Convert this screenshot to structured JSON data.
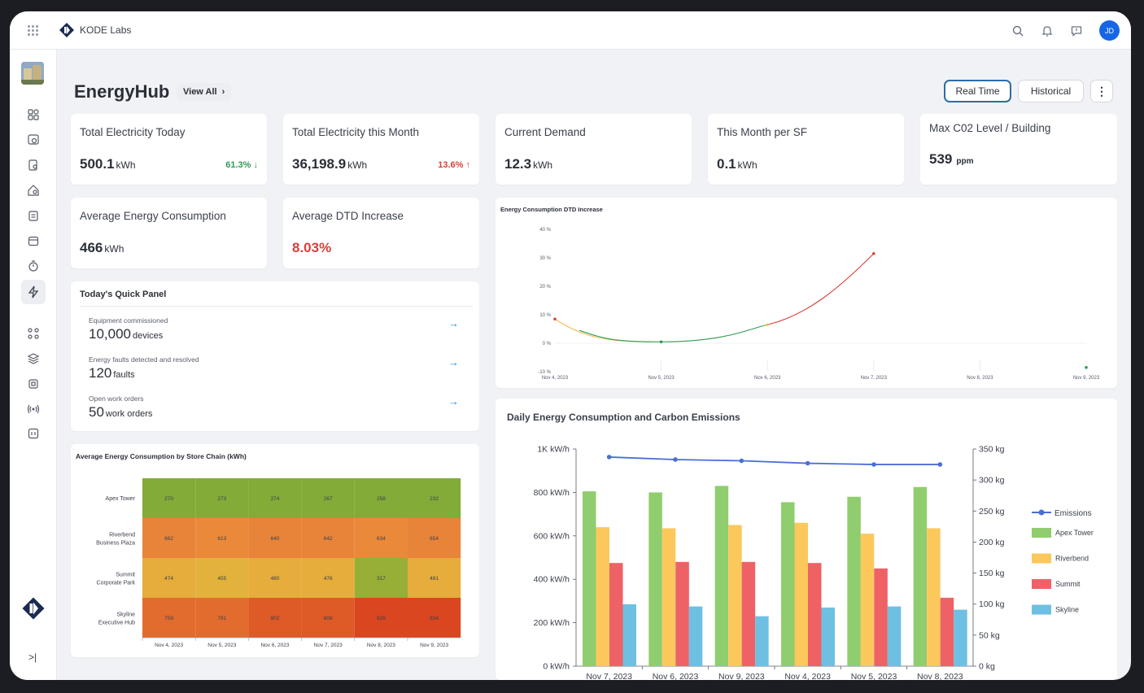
{
  "topbar": {
    "brand": "KODE Labs",
    "avatar_initials": "JD",
    "icons": [
      "apps-grid-icon",
      "search-icon",
      "bell-icon",
      "message-icon"
    ]
  },
  "header": {
    "title": "EnergyHub",
    "view_all": "View All",
    "real_time": "Real Time",
    "historical": "Historical"
  },
  "kpis": [
    {
      "label": "Total Electricity Today",
      "value": "500.1",
      "unit": "kWh",
      "change": "61.3% ↓",
      "change_color": "#2e9b55"
    },
    {
      "label": "Total Electricity this Month",
      "value": "36,198.9",
      "unit": "kWh",
      "change": "13.6% ↑",
      "change_color": "#d8403a"
    },
    {
      "label": "Current Demand",
      "value": "12.3",
      "unit": "kWh"
    },
    {
      "label": "This Month per SF",
      "value": "0.1",
      "unit": "kWh"
    },
    {
      "label": "Max C02 Level / Building",
      "value": "539",
      "unit": "ppm"
    },
    {
      "label": "Average Energy Consumption",
      "value": "466",
      "unit": "kWh"
    },
    {
      "label": "Average DTD Increase",
      "value": "8.03%",
      "value_color": "#d8403a"
    }
  ],
  "quick_panel": {
    "title": "Today's Quick Panel",
    "items": [
      {
        "caption": "Equipment commissioned",
        "value": "10,000",
        "unit": "devices"
      },
      {
        "caption": "Energy faults detected and resolved",
        "value": "120",
        "unit": "faults"
      },
      {
        "caption": "Open work orders",
        "value": "50",
        "unit": "work orders"
      }
    ]
  },
  "charts": {
    "dtd": {
      "type": "line",
      "title": "Energy Consumption DTD Increase",
      "x": [
        "Nov 4, 2023",
        "Nov 5, 2023",
        "Nov 6, 2023",
        "Nov 7, 2023",
        "Nov 8, 2023",
        "Nov 9, 2023"
      ],
      "y_ticks": [
        "40 %",
        "30 %",
        "20 %",
        "10 %",
        "0 %",
        "-10 %"
      ],
      "ylim": [
        -10,
        40
      ],
      "points": [
        {
          "x": 0,
          "y": 8.5,
          "color": "#d8403a"
        },
        {
          "x": 1,
          "y": 0.5,
          "color": "#2e9b55"
        },
        {
          "x": 2,
          "y": 6.5,
          "color": "#f2c14e"
        },
        {
          "x": 3,
          "y": 31.5,
          "color": "#d8403a"
        },
        {
          "x": 5,
          "y": -8.5,
          "color": "#2e9b55"
        }
      ]
    },
    "heatmap": {
      "type": "heatmap",
      "title": "Average Energy Consumption by Store Chain (kWh)",
      "rows": [
        "Apex Tower",
        "Riverbend Business Plaza",
        "Summit Corporate Park",
        "Skyline Executive Hub"
      ],
      "cols": [
        "Nov 4, 2023",
        "Nov 5, 2023",
        "Nov 6, 2023",
        "Nov 7, 2023",
        "Nov 8, 2023",
        "Nov 9, 2023"
      ],
      "values": [
        [
          270,
          273,
          274,
          267,
          258,
          232
        ],
        [
          662,
          613,
          640,
          642,
          634,
          654
        ],
        [
          474,
          455,
          480,
          476,
          317,
          481
        ],
        [
          759,
          781,
          802,
          808,
          825,
          834
        ]
      ]
    },
    "daily": {
      "type": "bar",
      "title": "Daily Energy Consumption and Carbon Emissions",
      "categories": [
        "Nov 7, 2023",
        "Nov 6, 2023",
        "Nov 9, 2023",
        "Nov 4, 2023",
        "Nov 5, 2023",
        "Nov 8, 2023"
      ],
      "y_left_ticks": [
        "1K kW/h",
        "800 kW/h",
        "600 kW/h",
        "400 kW/h",
        "200 kW/h",
        "0 kW/h"
      ],
      "y_right_ticks": [
        "350 kg",
        "300 kg",
        "250 kg",
        "200 kg",
        "150 kg",
        "100 kg",
        "50 kg",
        "0 kg"
      ],
      "ylim_left": [
        0,
        1000
      ],
      "ylim_right": [
        0,
        350
      ],
      "series": [
        {
          "name": "Apex Tower",
          "color": "#8fcd6e",
          "values": [
            805,
            800,
            830,
            755,
            780,
            825
          ]
        },
        {
          "name": "Riverbend",
          "color": "#fcc85b",
          "values": [
            640,
            635,
            650,
            660,
            610,
            635
          ]
        },
        {
          "name": "Summit",
          "color": "#ee6266",
          "values": [
            475,
            480,
            480,
            475,
            450,
            315
          ]
        },
        {
          "name": "Skyline",
          "color": "#6ec0e2",
          "values": [
            285,
            275,
            230,
            270,
            275,
            260
          ]
        }
      ],
      "line_series": {
        "name": "Emissions",
        "color": "#4a6fd6",
        "values": [
          337,
          333,
          331,
          327,
          325,
          325
        ]
      }
    }
  }
}
